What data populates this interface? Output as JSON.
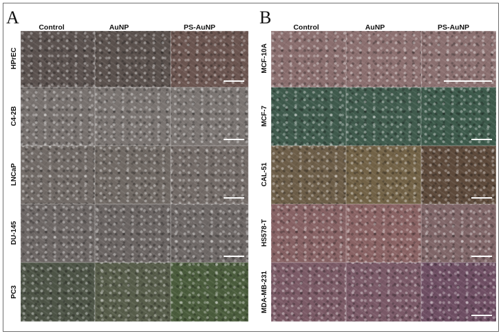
{
  "panelA": {
    "letter": "A",
    "columns": [
      "Control",
      "AuNP",
      "PS-AuNP"
    ],
    "rows": [
      {
        "label": "HPrEC",
        "colors": [
          "#5b524f",
          "#5a514d",
          "#6b5550"
        ],
        "scalebar": true
      },
      {
        "label": "C4-2B",
        "colors": [
          "#78726f",
          "#7a7471",
          "#7b7572"
        ],
        "scalebar": true
      },
      {
        "label": "LNCaP",
        "colors": [
          "#716a66",
          "#706964",
          "#736b67"
        ],
        "scalebar": true
      },
      {
        "label": "DU-145",
        "colors": [
          "#6d6765",
          "#6b6563",
          "#6e6866"
        ],
        "scalebar": true
      },
      {
        "label": "PC3",
        "colors": [
          "#4d5446",
          "#575d4a",
          "#4a5c3c"
        ],
        "scalebar": false
      }
    ]
  },
  "panelB": {
    "letter": "B",
    "columns": [
      "Control",
      "AuNP",
      "PS-AuNP"
    ],
    "rows": [
      {
        "label": "MCF-10A",
        "colors": [
          "#8a6e6e",
          "#8c7070",
          "#8b7070"
        ],
        "scalebar": true
      },
      {
        "label": "MCF-7",
        "colors": [
          "#3f5a4c",
          "#405b4d",
          "#3d5a4b"
        ],
        "scalebar": true
      },
      {
        "label": "CAL-51",
        "colors": [
          "#6d5e48",
          "#726246",
          "#5e4a3b"
        ],
        "scalebar": true
      },
      {
        "label": "HS578-T",
        "colors": [
          "#876264",
          "#8a6364",
          "#806668"
        ],
        "scalebar": true
      },
      {
        "label": "MDA-MB-231",
        "colors": [
          "#7b5a66",
          "#7a5967",
          "#6e4e63"
        ],
        "scalebar": true
      }
    ]
  }
}
